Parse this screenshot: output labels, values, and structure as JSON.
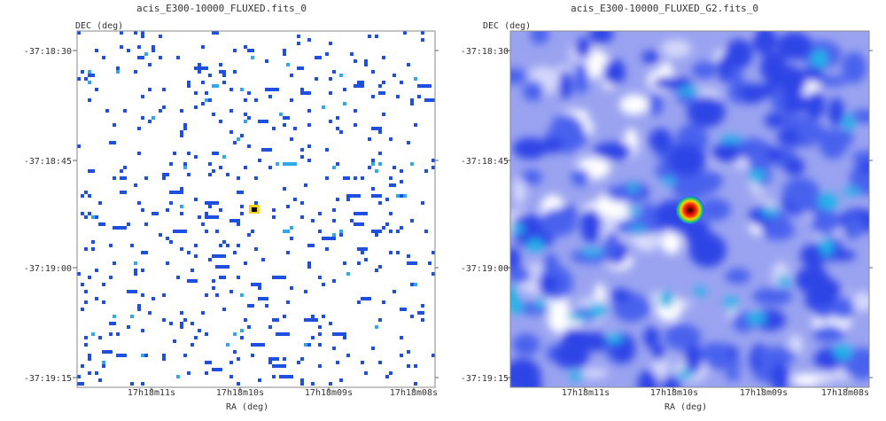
{
  "chart_data": [
    {
      "type": "heatmap",
      "title": "acis_E300-10000_FLUXED.fits_0",
      "xlabel": "RA (deg)",
      "ylabel": "DEC (deg)",
      "x_ticks": [
        "17h18m11s",
        "17h18m10s",
        "17h18m09s",
        "17h18m08s"
      ],
      "y_ticks": [
        "-37:18:30",
        "-37:18:45",
        "-37:19:00",
        "-37:19:15"
      ],
      "rendering": "sparse photon counts",
      "source": {
        "ra": "17h18m10s",
        "dec": "-37:18:53"
      },
      "colors": {
        "background": "#ffffff",
        "low": "#1f4fe0",
        "mid": "#2fa8f0",
        "peak": "#000000"
      }
    },
    {
      "type": "heatmap",
      "title": "acis_E300-10000_FLUXED_G2.fits_0",
      "xlabel": "RA (deg)",
      "ylabel": "DEC (deg)",
      "x_ticks": [
        "17h18m11s",
        "17h18m10s",
        "17h18m09s",
        "17h18m08s"
      ],
      "y_ticks": [
        "-37:18:30",
        "-37:18:45",
        "-37:19:00",
        "-37:19:15"
      ],
      "rendering": "gaussian-smoothed (G2)",
      "source": {
        "ra": "17h18m10s",
        "dec": "-37:18:53"
      },
      "colors": {
        "background": "#ffffff",
        "low": "#3a4fe8",
        "mid": "#18b0e8",
        "peak": "#d00000"
      }
    }
  ]
}
